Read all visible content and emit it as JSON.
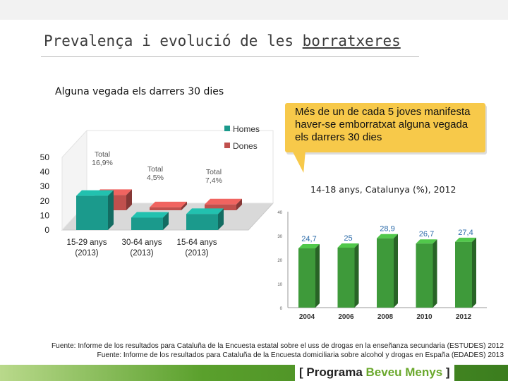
{
  "slide": {
    "title_prefix": "Prevalença i evolució de les ",
    "title_underlined": "borratxeres",
    "subtitle": "Alguna vegada els darrers 30 dies",
    "callout": "Més de un de cada 5 joves manifesta haver-se emborratxat alguna vegada els darrers 30 dies",
    "right_caption": "14-18 anys, Catalunya (%), 2012"
  },
  "chart_data": [
    {
      "type": "bar",
      "categories": [
        "15-29 anys (2013)",
        "30-64 anys (2013)",
        "15-64 anys (2013)"
      ],
      "category_lines": [
        [
          "15-29 anys",
          "(2013)"
        ],
        [
          "30-64 anys",
          "(2013)"
        ],
        [
          "15-64 anys",
          "(2013)"
        ]
      ],
      "series": [
        {
          "name": "Homes",
          "color": "#1b9a8c",
          "values": [
            23.5,
            8.5,
            11.0
          ]
        },
        {
          "name": "Dones",
          "color": "#c0504d",
          "values": [
            10.5,
            2.0,
            4.0
          ]
        }
      ],
      "totals": [
        {
          "label": "Total",
          "value": "16,9%"
        },
        {
          "label": "Total",
          "value": "4,5%"
        },
        {
          "label": "Total",
          "value": "7,4%"
        }
      ],
      "yticks": [
        "0",
        "10",
        "20",
        "30",
        "40",
        "50"
      ],
      "ylim": [
        0,
        50
      ],
      "legend_position": "top-right",
      "three_d": true
    },
    {
      "type": "bar",
      "categories": [
        "2004",
        "2006",
        "2008",
        "2010",
        "2012"
      ],
      "values": [
        24.7,
        25,
        28.9,
        26.7,
        27.4
      ],
      "data_labels": [
        "24,7",
        "25",
        "28,9",
        "26,7",
        "27,4"
      ],
      "color": "#3e9a3a",
      "label_color": "#2a6aa8",
      "yticks": [
        "0",
        "10",
        "20",
        "30",
        "40"
      ],
      "ylim": [
        0,
        40
      ],
      "three_d": true
    }
  ],
  "footer": {
    "line1": "Fuente: Informe de los resultados para Cataluña de la Encuesta estatal sobre el uss de drogas en la enseñanza secundaria (ESTUDES) 2012",
    "line2": "Fuente: Informe de los resultados para Cataluña de la Encuesta domiciliaria sobre alcohol y drogas en España (EDADES) 2013"
  },
  "brand": {
    "open": "[",
    "word1": "Programa",
    "word2": "Beveu Menys",
    "close": "]"
  }
}
